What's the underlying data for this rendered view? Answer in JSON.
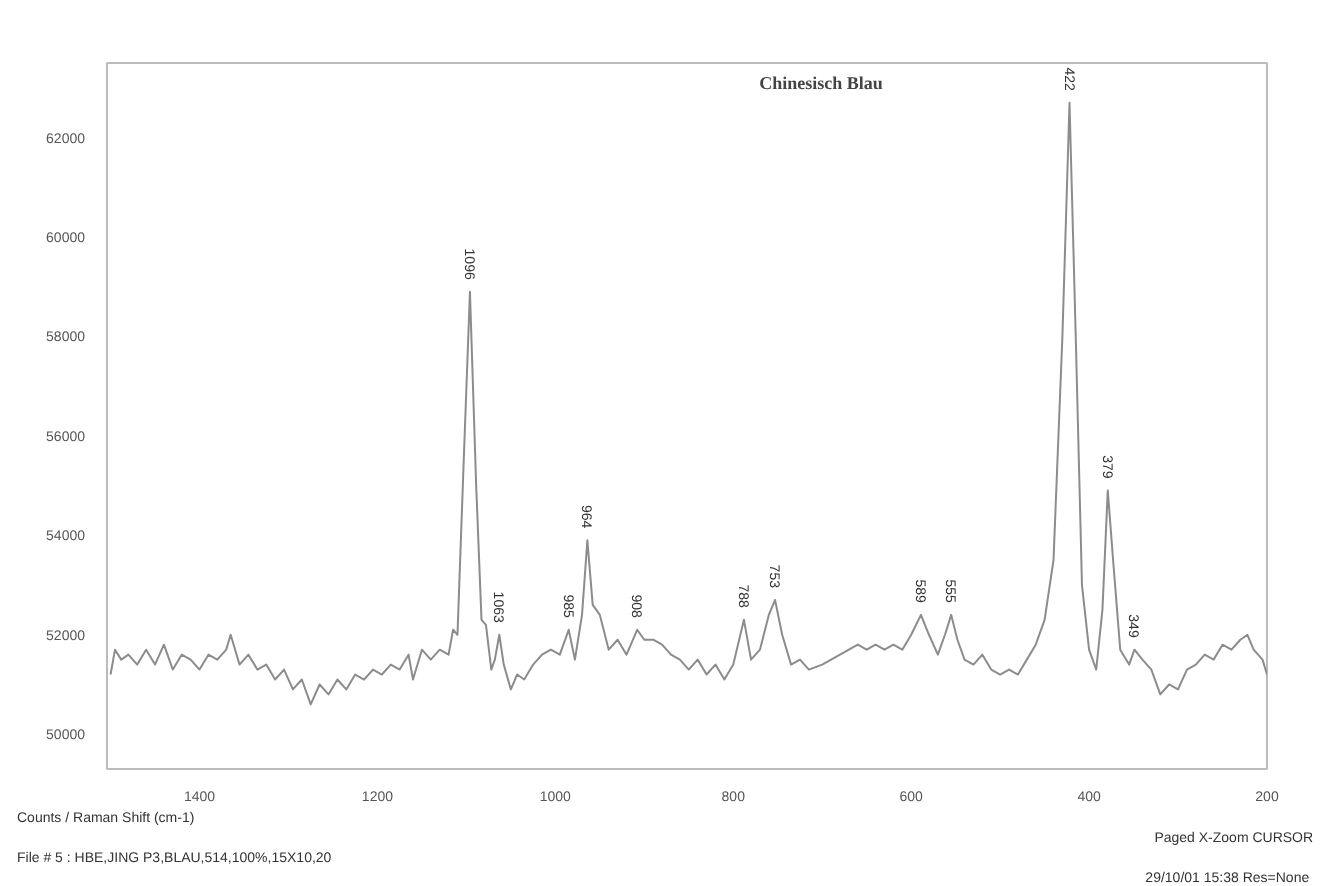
{
  "chart_data": {
    "type": "line",
    "title": "Chinesisch Blau",
    "x": [
      1500,
      1495,
      1488,
      1480,
      1470,
      1460,
      1450,
      1440,
      1430,
      1420,
      1410,
      1400,
      1390,
      1380,
      1370,
      1365,
      1355,
      1345,
      1335,
      1325,
      1315,
      1305,
      1295,
      1285,
      1275,
      1265,
      1255,
      1245,
      1235,
      1225,
      1215,
      1205,
      1195,
      1185,
      1175,
      1165,
      1160,
      1150,
      1140,
      1130,
      1120,
      1115,
      1110,
      1103,
      1096,
      1089,
      1083,
      1078,
      1072,
      1068,
      1063,
      1058,
      1050,
      1043,
      1035,
      1025,
      1015,
      1005,
      995,
      985,
      978,
      970,
      964,
      958,
      950,
      940,
      930,
      920,
      908,
      900,
      890,
      880,
      870,
      860,
      850,
      840,
      830,
      820,
      810,
      800,
      788,
      780,
      770,
      760,
      753,
      745,
      735,
      725,
      715,
      700,
      690,
      680,
      670,
      660,
      650,
      640,
      630,
      620,
      610,
      600,
      589,
      580,
      570,
      562,
      555,
      548,
      540,
      530,
      520,
      510,
      500,
      490,
      480,
      470,
      460,
      450,
      440,
      430,
      422,
      415,
      408,
      400,
      392,
      385,
      379,
      373,
      365,
      355,
      349,
      340,
      330,
      320,
      310,
      300,
      290,
      280,
      270,
      260,
      250,
      240,
      230,
      222,
      215,
      205,
      200
    ],
    "series": [
      {
        "color": "#8c8c8c",
        "values": [
          51200,
          51700,
          51500,
          51600,
          51400,
          51700,
          51400,
          51800,
          51300,
          51600,
          51500,
          51300,
          51600,
          51500,
          51700,
          52000,
          51400,
          51600,
          51300,
          51400,
          51100,
          51300,
          50900,
          51100,
          50600,
          51000,
          50800,
          51100,
          50900,
          51200,
          51100,
          51300,
          51200,
          51400,
          51300,
          51600,
          51100,
          51700,
          51500,
          51700,
          51600,
          52100,
          52000,
          55500,
          58900,
          55000,
          52300,
          52200,
          51300,
          51500,
          52000,
          51400,
          50900,
          51200,
          51100,
          51400,
          51600,
          51700,
          51600,
          52100,
          51500,
          52400,
          53900,
          52600,
          52400,
          51700,
          51900,
          51600,
          52100,
          51900,
          51900,
          51800,
          51600,
          51500,
          51300,
          51500,
          51200,
          51400,
          51100,
          51400,
          52300,
          51500,
          51700,
          52400,
          52700,
          52000,
          51400,
          51500,
          51300,
          51400,
          51500,
          51600,
          51700,
          51800,
          51700,
          51800,
          51700,
          51800,
          51700,
          52000,
          52400,
          52000,
          51600,
          52000,
          52400,
          51900,
          51500,
          51400,
          51600,
          51300,
          51200,
          51300,
          51200,
          51500,
          51800,
          52300,
          53500,
          58000,
          62700,
          58000,
          53000,
          51700,
          51300,
          52500,
          54900,
          53500,
          51700,
          51400,
          51700,
          51500,
          51300,
          50800,
          51000,
          50900,
          51300,
          51400,
          51600,
          51500,
          51800,
          51700,
          51900,
          52000,
          51700,
          51500,
          51200
        ]
      }
    ],
    "xlim": [
      1504,
      200
    ],
    "ylim": [
      49300,
      63500
    ],
    "xticks": [
      1400,
      1200,
      1000,
      800,
      600,
      400,
      200
    ],
    "yticks": [
      50000,
      52000,
      54000,
      56000,
      58000,
      60000,
      62000
    ],
    "grid": false,
    "annotations": [
      {
        "text": "1096",
        "x": 1096,
        "y": 58900
      },
      {
        "text": "1063",
        "x": 1063,
        "y": 52000
      },
      {
        "text": "985",
        "x": 985,
        "y": 52100
      },
      {
        "text": "964",
        "x": 964,
        "y": 53900
      },
      {
        "text": "908",
        "x": 908,
        "y": 52100
      },
      {
        "text": "788",
        "x": 788,
        "y": 52300
      },
      {
        "text": "753",
        "x": 753,
        "y": 52700
      },
      {
        "text": "589",
        "x": 589,
        "y": 52400
      },
      {
        "text": "555",
        "x": 555,
        "y": 52400
      },
      {
        "text": "422",
        "x": 422,
        "y": 62700
      },
      {
        "text": "379",
        "x": 379,
        "y": 54900
      },
      {
        "text": "349",
        "x": 349,
        "y": 51700
      },
      "Counts / Raman Shift (cm-1)",
      "File # 5 : HBE,JING P3,BLAU,514,100%,15X10,20",
      "Paged  X-Zoom CURSOR",
      "29/10/01  15:38  Res=None"
    ]
  }
}
